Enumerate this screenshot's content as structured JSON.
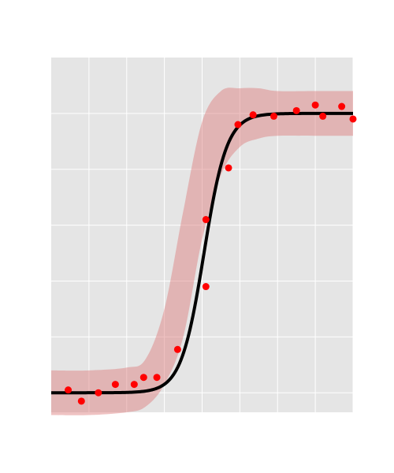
{
  "chart_data": {
    "type": "line",
    "title": "",
    "xlabel": "",
    "ylabel": "",
    "xlim": [
      0,
      8
    ],
    "ylim": [
      -0.07,
      1.2
    ],
    "grid": true,
    "x_gridlines": [
      1,
      2,
      3,
      4,
      5,
      6,
      7,
      8
    ],
    "y_gridlines": [
      0,
      0.2,
      0.4,
      0.6,
      0.8,
      1.0
    ],
    "colors": {
      "background": "#e5e5e5",
      "grid": "#ffffff",
      "fit": "#000000",
      "band": "#dc7878",
      "points": "#ff0000"
    },
    "band": {
      "lower": [
        [
          0.0,
          -0.08
        ],
        [
          1.0,
          -0.08
        ],
        [
          2.0,
          -0.07
        ],
        [
          2.5,
          -0.05
        ],
        [
          3.0,
          0.03
        ],
        [
          3.5,
          0.2
        ],
        [
          4.0,
          0.55
        ],
        [
          4.5,
          0.78
        ],
        [
          5.0,
          0.88
        ],
        [
          5.5,
          0.91
        ],
        [
          6.0,
          0.92
        ],
        [
          7.0,
          0.92
        ],
        [
          8.0,
          0.92
        ]
      ],
      "upper": [
        [
          0.0,
          0.08
        ],
        [
          1.0,
          0.08
        ],
        [
          2.0,
          0.09
        ],
        [
          2.5,
          0.12
        ],
        [
          3.0,
          0.3
        ],
        [
          3.5,
          0.65
        ],
        [
          4.0,
          0.97
        ],
        [
          4.5,
          1.08
        ],
        [
          5.0,
          1.09
        ],
        [
          5.5,
          1.09
        ],
        [
          6.0,
          1.08
        ],
        [
          7.0,
          1.08
        ],
        [
          8.0,
          1.08
        ]
      ]
    },
    "fit_curve": {
      "model": "logistic",
      "L": 1.0,
      "x0": 4.05,
      "k": 3.3
    },
    "points": [
      {
        "x": 0.45,
        "y": 0.01
      },
      {
        "x": 0.8,
        "y": -0.03
      },
      {
        "x": 1.25,
        "y": 0.0
      },
      {
        "x": 1.7,
        "y": 0.03
      },
      {
        "x": 2.2,
        "y": 0.03
      },
      {
        "x": 2.45,
        "y": 0.055
      },
      {
        "x": 2.8,
        "y": 0.055
      },
      {
        "x": 3.35,
        "y": 0.155
      },
      {
        "x": 4.1,
        "y": 0.38
      },
      {
        "x": 4.1,
        "y": 0.62
      },
      {
        "x": 4.7,
        "y": 0.805
      },
      {
        "x": 4.95,
        "y": 0.96
      },
      {
        "x": 5.35,
        "y": 0.995
      },
      {
        "x": 5.9,
        "y": 0.99
      },
      {
        "x": 6.5,
        "y": 1.01
      },
      {
        "x": 7.0,
        "y": 1.03
      },
      {
        "x": 7.2,
        "y": 0.99
      },
      {
        "x": 7.7,
        "y": 1.025
      },
      {
        "x": 8.0,
        "y": 0.98
      }
    ]
  }
}
